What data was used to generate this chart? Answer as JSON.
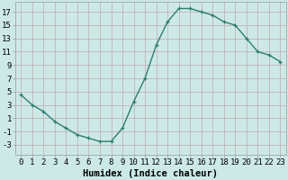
{
  "x": [
    0,
    1,
    2,
    3,
    4,
    5,
    6,
    7,
    8,
    9,
    10,
    11,
    12,
    13,
    14,
    15,
    16,
    17,
    18,
    19,
    20,
    21,
    22,
    23
  ],
  "y": [
    4.5,
    3.0,
    2.0,
    0.5,
    -0.5,
    -1.5,
    -2.0,
    -2.5,
    -2.5,
    -0.5,
    3.5,
    7.0,
    12.0,
    15.5,
    17.5,
    17.5,
    17.0,
    16.5,
    15.5,
    15.0,
    13.0,
    11.0,
    10.5,
    9.5
  ],
  "line_color": "#2e7d6e",
  "marker": "+",
  "bg_color": "#cce9e8",
  "grid_color": "#c0aaaa",
  "xlabel": "Humidex (Indice chaleur)",
  "xlim": [
    -0.5,
    23.5
  ],
  "ylim": [
    -4.5,
    18.5
  ],
  "yticks": [
    -3,
    -1,
    1,
    3,
    5,
    7,
    9,
    11,
    13,
    15,
    17
  ],
  "xlabel_fontsize": 7.5,
  "tick_fontsize": 6.5,
  "linewidth": 1.0,
  "markersize": 3.5,
  "markeredgewidth": 0.9
}
